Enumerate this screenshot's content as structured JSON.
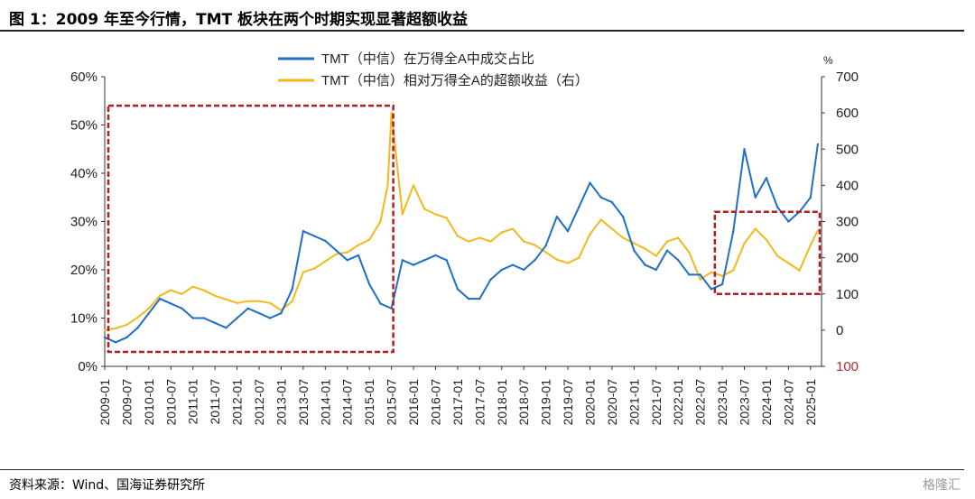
{
  "header": {
    "title": "图 1：2009 年至今行情，TMT 板块在两个时期实现显著超额收益"
  },
  "footer": {
    "source": "资料来源：Wind、国海证券研究所",
    "watermark": "格隆汇"
  },
  "chart_data": {
    "type": "line",
    "title": "",
    "left_axis": {
      "ylim": [
        0,
        60
      ],
      "ticks": [
        "0%",
        "10%",
        "20%",
        "30%",
        "40%",
        "50%",
        "60%"
      ]
    },
    "right_axis": {
      "unit": "%",
      "ylim": [
        -100,
        700
      ],
      "ticks": [
        "100",
        "0",
        "100",
        "200",
        "300",
        "400",
        "500",
        "600",
        "700"
      ],
      "tick_values": [
        -100,
        0,
        100,
        200,
        300,
        400,
        500,
        600,
        700
      ],
      "note": ""
    },
    "x_ticks": [
      "2009-01",
      "2009-07",
      "2010-01",
      "2010-07",
      "2011-01",
      "2011-07",
      "2012-01",
      "2012-07",
      "2013-01",
      "2013-07",
      "2014-01",
      "2014-07",
      "2015-01",
      "2015-07",
      "2016-01",
      "2016-07",
      "2017-01",
      "2017-07",
      "2018-01",
      "2018-07",
      "2019-01",
      "2019-07",
      "2020-01",
      "2020-07",
      "2021-01",
      "2021-07",
      "2022-01",
      "2022-07",
      "2023-01",
      "2023-07",
      "2024-01",
      "2024-07",
      "2025-01"
    ],
    "legend_position": "top-center",
    "grid": false,
    "series": [
      {
        "name": "TMT（中信）在万得全A中成交占比",
        "axis": "left",
        "color": "#1f6fc5",
        "x": [
          "2009-01",
          "2009-04",
          "2009-07",
          "2009-10",
          "2010-01",
          "2010-04",
          "2010-07",
          "2010-10",
          "2011-01",
          "2011-04",
          "2011-07",
          "2011-10",
          "2012-01",
          "2012-04",
          "2012-07",
          "2012-10",
          "2013-01",
          "2013-04",
          "2013-07",
          "2013-10",
          "2014-01",
          "2014-04",
          "2014-07",
          "2014-10",
          "2015-01",
          "2015-04",
          "2015-07",
          "2015-10",
          "2016-01",
          "2016-04",
          "2016-07",
          "2016-10",
          "2017-01",
          "2017-04",
          "2017-07",
          "2017-10",
          "2018-01",
          "2018-04",
          "2018-07",
          "2018-10",
          "2019-01",
          "2019-04",
          "2019-07",
          "2019-10",
          "2020-01",
          "2020-04",
          "2020-07",
          "2020-10",
          "2021-01",
          "2021-04",
          "2021-07",
          "2021-10",
          "2022-01",
          "2022-04",
          "2022-07",
          "2022-10",
          "2023-01",
          "2023-04",
          "2023-07",
          "2023-10",
          "2024-01",
          "2024-04",
          "2024-07",
          "2024-10",
          "2025-01",
          "2025-03"
        ],
        "values": [
          6,
          5,
          6,
          8,
          11,
          14,
          13,
          12,
          10,
          10,
          9,
          8,
          10,
          12,
          11,
          10,
          11,
          16,
          28,
          27,
          26,
          24,
          22,
          23,
          17,
          13,
          12,
          22,
          21,
          22,
          23,
          22,
          16,
          14,
          14,
          18,
          20,
          21,
          20,
          22,
          25,
          31,
          28,
          33,
          38,
          35,
          34,
          31,
          24,
          21,
          20,
          24,
          22,
          19,
          19,
          16,
          17,
          28,
          45,
          35,
          39,
          33,
          30,
          32,
          35,
          46
        ]
      },
      {
        "name": "TMT（中信）相对万得全A的超额收益（右）",
        "axis": "right",
        "color": "#f2b81c",
        "x": [
          "2009-01",
          "2009-04",
          "2009-07",
          "2009-10",
          "2010-01",
          "2010-04",
          "2010-07",
          "2010-10",
          "2011-01",
          "2011-04",
          "2011-07",
          "2011-10",
          "2012-01",
          "2012-04",
          "2012-07",
          "2012-10",
          "2013-01",
          "2013-04",
          "2013-07",
          "2013-10",
          "2014-01",
          "2014-04",
          "2014-07",
          "2014-10",
          "2015-01",
          "2015-04",
          "2015-06",
          "2015-07",
          "2015-10",
          "2016-01",
          "2016-04",
          "2016-07",
          "2016-10",
          "2017-01",
          "2017-04",
          "2017-07",
          "2017-10",
          "2018-01",
          "2018-04",
          "2018-07",
          "2018-10",
          "2019-01",
          "2019-04",
          "2019-07",
          "2019-10",
          "2020-01",
          "2020-04",
          "2020-07",
          "2020-10",
          "2021-01",
          "2021-04",
          "2021-07",
          "2021-10",
          "2022-01",
          "2022-04",
          "2022-07",
          "2022-10",
          "2023-01",
          "2023-04",
          "2023-07",
          "2023-10",
          "2024-01",
          "2024-04",
          "2024-07",
          "2024-10",
          "2025-01",
          "2025-03"
        ],
        "values": [
          0,
          5,
          15,
          35,
          60,
          95,
          110,
          100,
          120,
          110,
          95,
          85,
          75,
          80,
          80,
          75,
          55,
          80,
          160,
          170,
          190,
          210,
          215,
          235,
          250,
          300,
          400,
          600,
          320,
          400,
          335,
          320,
          310,
          260,
          245,
          255,
          245,
          270,
          280,
          245,
          235,
          215,
          195,
          185,
          200,
          265,
          305,
          280,
          255,
          240,
          225,
          205,
          245,
          255,
          215,
          140,
          160,
          150,
          165,
          240,
          280,
          250,
          205,
          185,
          165,
          235,
          275
        ]
      }
    ],
    "annotations": [
      {
        "type": "dashed-rect",
        "color": "#b01e23",
        "x_start": "2009-01",
        "x_end": "2015-07",
        "left_y_from": 3,
        "left_y_to": 54
      },
      {
        "type": "dashed-rect",
        "color": "#b01e23",
        "x_start": "2022-10",
        "x_end": "2025-03",
        "left_y_from": 15,
        "left_y_to": 32
      }
    ]
  }
}
